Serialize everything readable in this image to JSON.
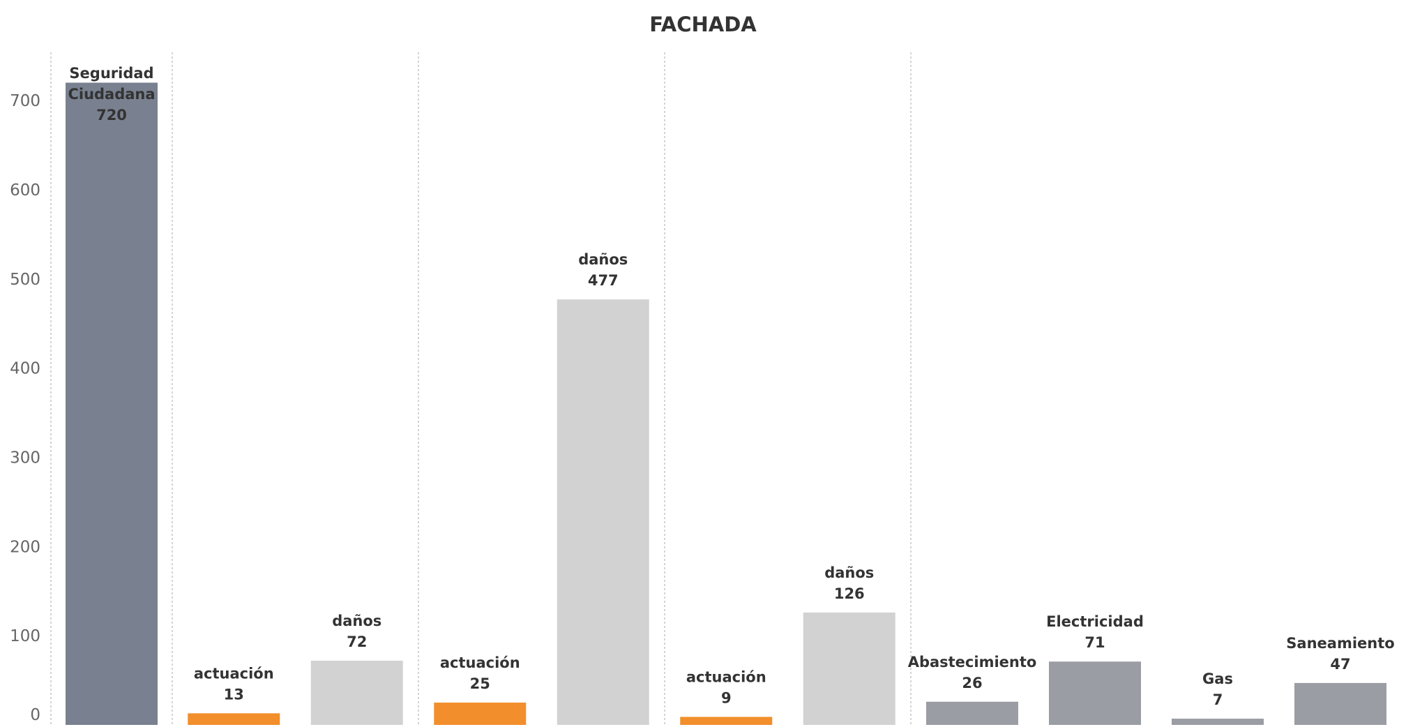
{
  "chart_data": {
    "type": "bar",
    "title": "FACHADA",
    "xlabel": "",
    "ylabel": "",
    "ylim": [
      0,
      760
    ],
    "yticks": [
      0,
      100,
      200,
      300,
      400,
      500,
      600,
      700
    ],
    "grid": false,
    "colors": {
      "seguridad": "#798190",
      "actuacion": "#f28e2b",
      "danos": "#d2d2d2",
      "suministros": "#9a9da3"
    },
    "groups": [
      {
        "bars": [
          {
            "label": [
              "Seguridad",
              "Ciudadana"
            ],
            "value": 720,
            "color_key": "seguridad"
          }
        ]
      },
      {
        "bars": [
          {
            "label": [
              "actuación"
            ],
            "value": 13,
            "color_key": "actuacion"
          },
          {
            "label": [
              "daños"
            ],
            "value": 72,
            "color_key": "danos"
          }
        ]
      },
      {
        "bars": [
          {
            "label": [
              "actuación"
            ],
            "value": 25,
            "color_key": "actuacion"
          },
          {
            "label": [
              "daños"
            ],
            "value": 477,
            "color_key": "danos"
          }
        ]
      },
      {
        "bars": [
          {
            "label": [
              "actuación"
            ],
            "value": 9,
            "color_key": "actuacion"
          },
          {
            "label": [
              "daños"
            ],
            "value": 126,
            "color_key": "danos"
          }
        ]
      },
      {
        "bars": [
          {
            "label": [
              "Abastecimiento"
            ],
            "value": 26,
            "color_key": "suministros"
          },
          {
            "label": [
              "Electricidad"
            ],
            "value": 71,
            "color_key": "suministros"
          },
          {
            "label": [
              "Gas"
            ],
            "value": 7,
            "color_key": "suministros"
          },
          {
            "label": [
              "Saneamiento"
            ],
            "value": 47,
            "color_key": "suministros"
          }
        ]
      }
    ]
  }
}
